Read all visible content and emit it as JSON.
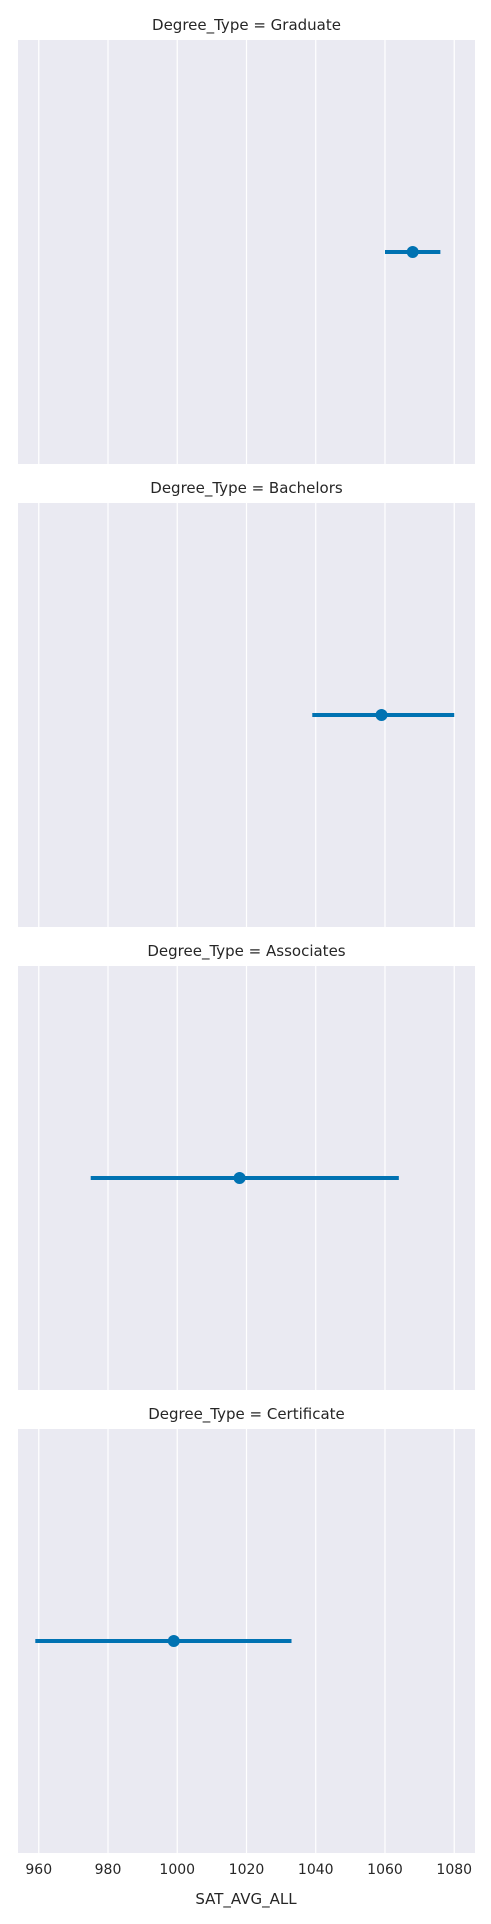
{
  "chart_data": {
    "type": "point",
    "xlabel": "SAT_AVG_ALL",
    "xlim": [
      954,
      1086
    ],
    "xticks": [
      960,
      980,
      1000,
      1020,
      1040,
      1060,
      1080
    ],
    "tick_labels": [
      "960",
      "980",
      "1000",
      "1020",
      "1040",
      "1060",
      "1080"
    ],
    "grid": true,
    "panels": [
      {
        "title": "Degree_Type = Graduate",
        "value": 1068,
        "ci": [
          1060,
          1076
        ]
      },
      {
        "title": "Degree_Type = Bachelors",
        "value": 1059,
        "ci": [
          1039,
          1080
        ]
      },
      {
        "title": "Degree_Type = Associates",
        "value": 1018,
        "ci": [
          975,
          1064
        ]
      },
      {
        "title": "Degree_Type = Certificate",
        "value": 999,
        "ci": [
          959,
          1033
        ]
      }
    ],
    "colors": {
      "point": "#0072b2",
      "panel_background": "#eaeaf2",
      "grid": "#ffffff"
    }
  }
}
